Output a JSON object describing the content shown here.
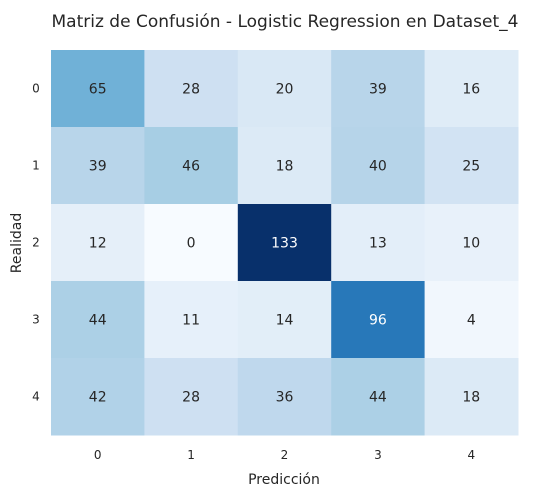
{
  "chart_data": {
    "type": "heatmap",
    "title": "Matriz de Confusión - Logistic Regression en Dataset_4",
    "xlabel": "Predicción",
    "ylabel": "Realidad",
    "x_categories": [
      "0",
      "1",
      "2",
      "3",
      "4"
    ],
    "y_categories": [
      "0",
      "1",
      "2",
      "3",
      "4"
    ],
    "values": [
      [
        65,
        28,
        20,
        39,
        16
      ],
      [
        39,
        46,
        18,
        40,
        25
      ],
      [
        12,
        0,
        133,
        13,
        10
      ],
      [
        44,
        11,
        14,
        96,
        4
      ],
      [
        42,
        28,
        36,
        44,
        18
      ]
    ],
    "colormap": "Blues",
    "vmin": 0,
    "vmax": 133,
    "grid": false,
    "legend": "none"
  }
}
